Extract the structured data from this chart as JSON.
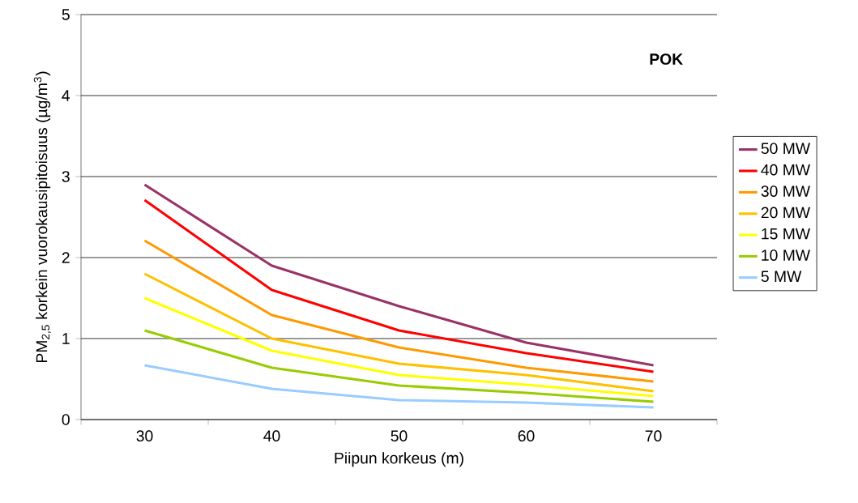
{
  "chart_data": {
    "type": "line",
    "xlabel": "Piipun korkeus (m)",
    "ylabel": "PM$_{2,5}$ korkein vuorokausipitoisuus (µg/m$^{3}$)",
    "annotations": [
      "POK"
    ],
    "categories": [
      "30",
      "40",
      "50",
      "60",
      "70"
    ],
    "ylim": [
      0,
      5
    ],
    "yticks": [
      0,
      1,
      2,
      3,
      4,
      5
    ],
    "grid": "y",
    "legend": "right",
    "marker": "none",
    "line_style": "solid",
    "series": [
      {
        "name": "50 MW",
        "color": "#993366",
        "values": [
          2.9,
          1.9,
          1.4,
          0.95,
          0.67
        ]
      },
      {
        "name": "40 MW",
        "color": "#ff0000",
        "values": [
          2.71,
          1.6,
          1.1,
          0.82,
          0.59
        ]
      },
      {
        "name": "30 MW",
        "color": "#ff9900",
        "values": [
          2.21,
          1.29,
          0.89,
          0.64,
          0.47
        ]
      },
      {
        "name": "20 MW",
        "color": "#ffc000",
        "values": [
          1.8,
          1.0,
          0.69,
          0.55,
          0.35
        ]
      },
      {
        "name": "15 MW",
        "color": "#ffff00",
        "values": [
          1.5,
          0.85,
          0.55,
          0.43,
          0.29
        ]
      },
      {
        "name": "10 MW",
        "color": "#99cc00",
        "values": [
          1.1,
          0.64,
          0.42,
          0.33,
          0.22
        ]
      },
      {
        "name": "5 MW",
        "color": "#99ccff",
        "values": [
          0.67,
          0.38,
          0.24,
          0.21,
          0.15
        ]
      }
    ]
  }
}
